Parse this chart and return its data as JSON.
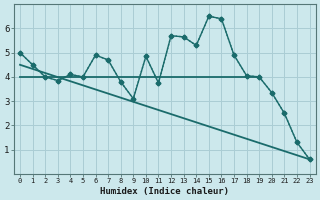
{
  "xlabel": "Humidex (Indice chaleur)",
  "background_color": "#cce8ec",
  "grid_color": "#aacdd4",
  "line_color": "#1a6b6b",
  "xlim": [
    -0.5,
    23.5
  ],
  "ylim": [
    0,
    7
  ],
  "yticks": [
    1,
    2,
    3,
    4,
    5,
    6
  ],
  "xticks": [
    0,
    1,
    2,
    3,
    4,
    5,
    6,
    7,
    8,
    9,
    10,
    11,
    12,
    13,
    14,
    15,
    16,
    17,
    18,
    19,
    20,
    21,
    22,
    23
  ],
  "series_dotted": {
    "x": [
      0,
      1,
      2,
      3,
      4,
      5,
      6,
      7,
      8,
      9,
      10,
      11,
      12,
      13,
      14,
      15,
      16,
      17,
      18,
      19,
      20,
      21,
      22,
      23
    ],
    "y": [
      5.0,
      4.5,
      4.0,
      3.85,
      4.1,
      4.0,
      4.9,
      4.7,
      3.8,
      3.1,
      4.85,
      3.75,
      5.7,
      5.65,
      5.3,
      6.5,
      6.4,
      4.9,
      4.05,
      4.0,
      3.35,
      2.5,
      1.3,
      0.6
    ]
  },
  "series_solid": {
    "x": [
      0,
      1,
      2,
      3,
      4,
      5,
      6,
      7,
      8,
      9,
      10,
      11,
      12,
      13,
      14,
      15,
      16,
      17,
      18,
      19,
      20,
      21,
      22,
      23
    ],
    "y": [
      5.0,
      4.5,
      4.0,
      3.85,
      4.1,
      4.0,
      4.9,
      4.7,
      3.8,
      3.1,
      4.85,
      3.75,
      5.7,
      5.65,
      5.3,
      6.5,
      6.4,
      4.9,
      4.05,
      4.0,
      3.35,
      2.5,
      1.3,
      0.6
    ]
  },
  "trend_flat": {
    "x": [
      0,
      19
    ],
    "y": [
      4.0,
      4.0
    ]
  },
  "trend_decline": {
    "x": [
      0,
      23
    ],
    "y": [
      4.5,
      0.6
    ]
  }
}
